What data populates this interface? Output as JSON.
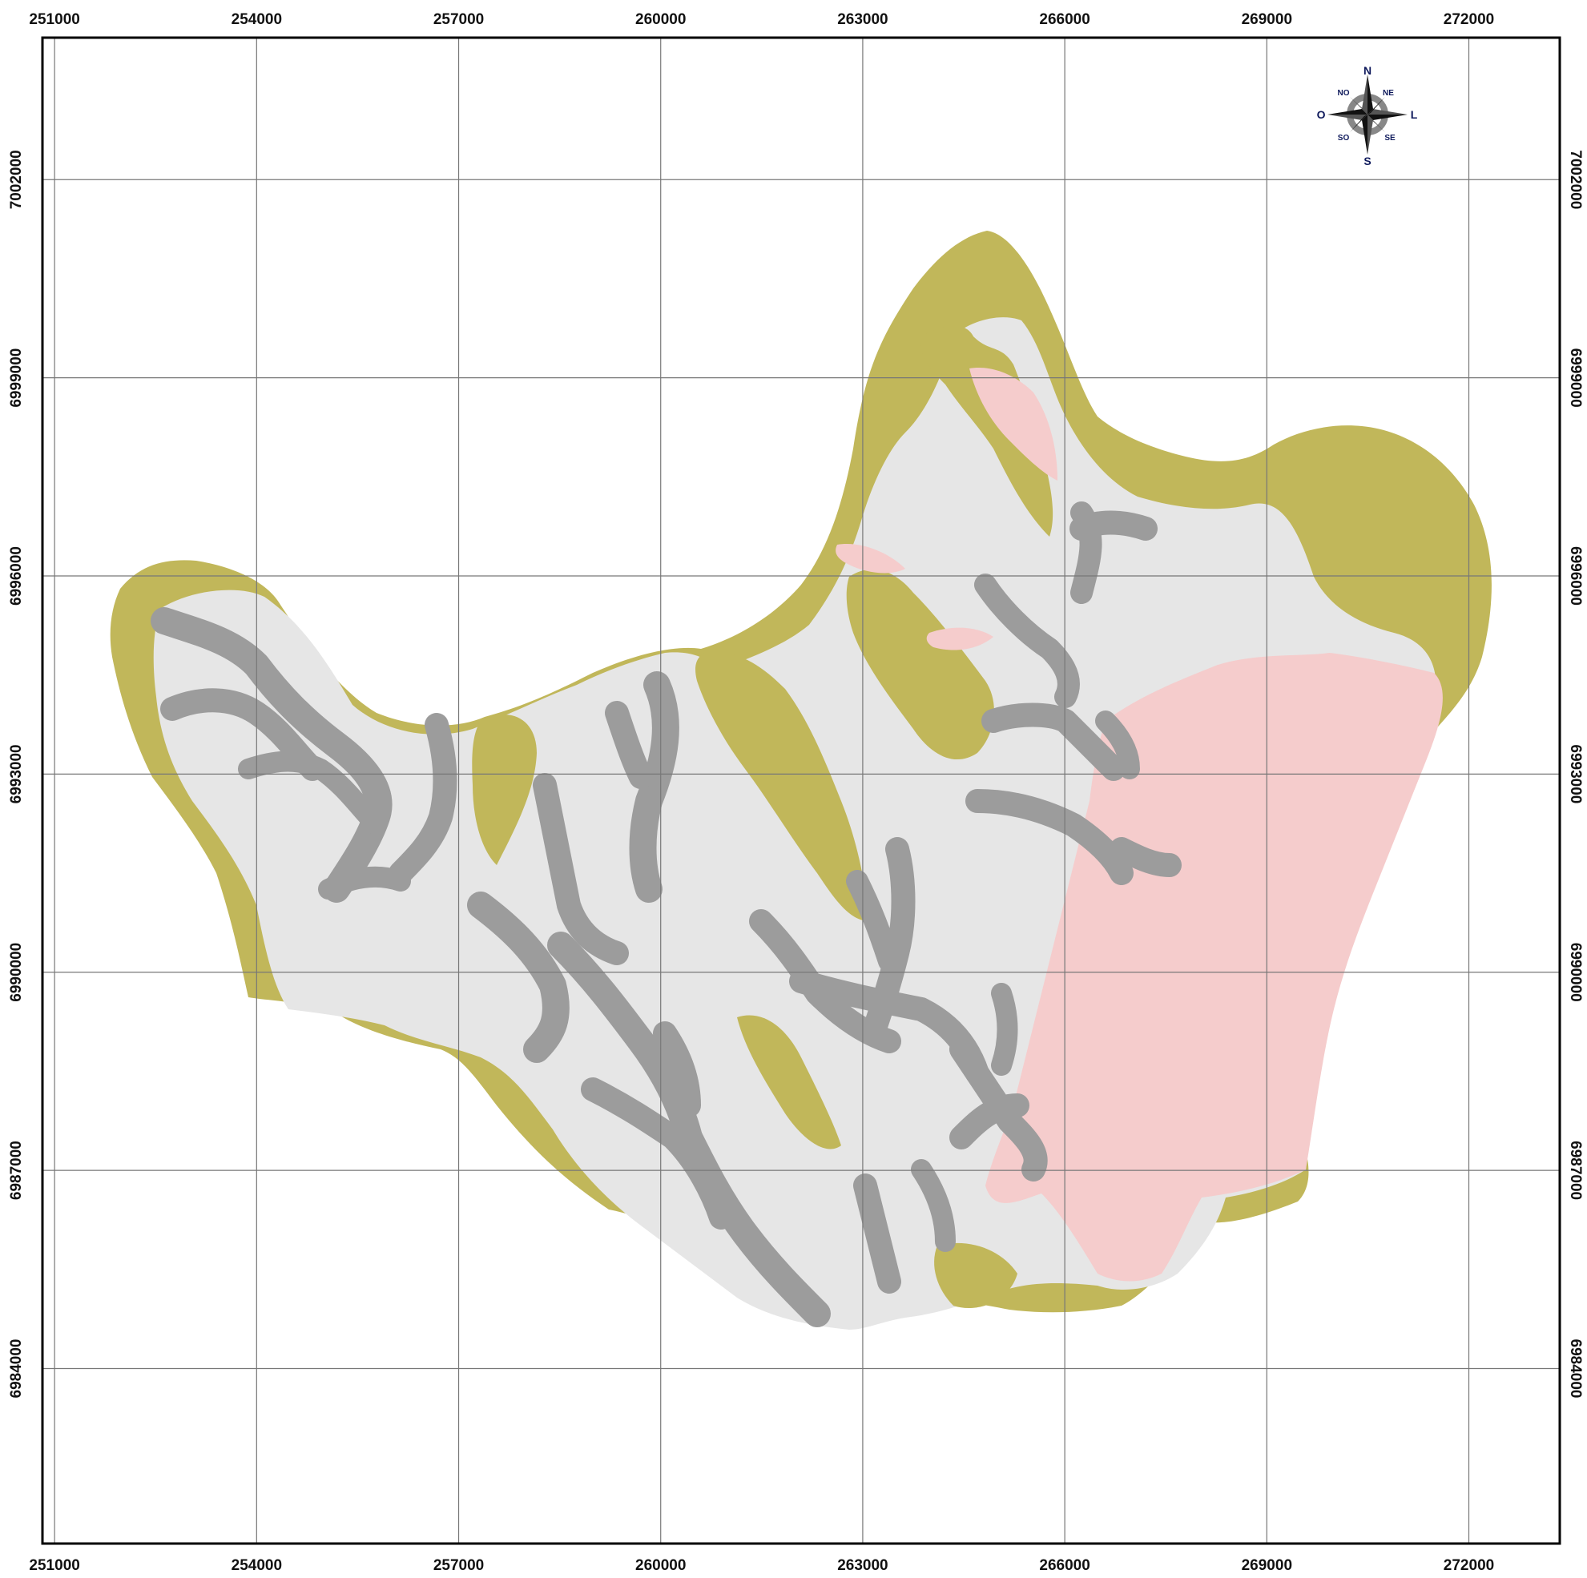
{
  "map": {
    "x_ticks": [
      "251000",
      "254000",
      "257000",
      "260000",
      "263000",
      "266000",
      "269000",
      "272000"
    ],
    "y_ticks": [
      "7002000",
      "6999000",
      "6996000",
      "6993000",
      "6990000",
      "6987000",
      "6984000"
    ],
    "x_tick_values": [
      251000,
      254000,
      257000,
      260000,
      263000,
      266000,
      269000,
      272000
    ],
    "y_tick_values": [
      7002000,
      6999000,
      6996000,
      6993000,
      6990000,
      6987000,
      6984000
    ],
    "x_range": [
      250820,
      273350
    ],
    "y_range": [
      7004150,
      6981350
    ],
    "grid": true,
    "compass": {
      "N": "N",
      "S": "S",
      "E": "L",
      "W": "O",
      "NE": "NE",
      "NW": "NO",
      "SE": "SE",
      "SW": "SO"
    },
    "colors": {
      "olive": "#c1b75a",
      "light_gray": "#e6e6e6",
      "dark_gray": "#9c9c9c",
      "pink": "#f5cccc",
      "grid": "#777777",
      "frame": "#000000"
    }
  }
}
